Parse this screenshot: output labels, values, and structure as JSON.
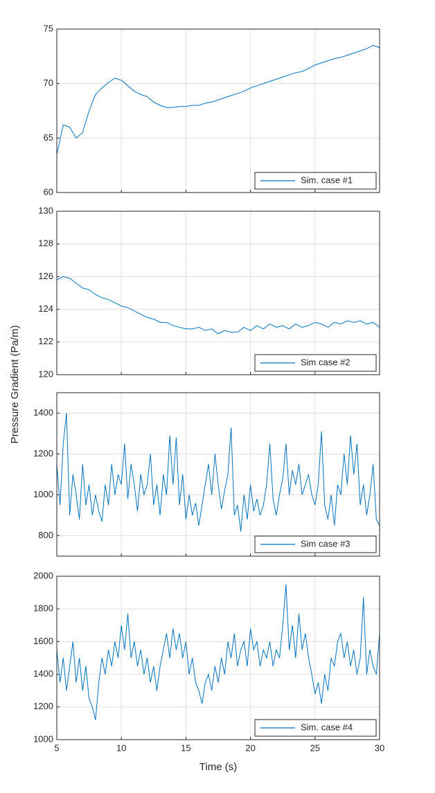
{
  "chart_data": [
    {
      "type": "line",
      "ylim": [
        60,
        75
      ],
      "yticks": [
        60,
        65,
        70,
        75
      ],
      "xlim": [
        5,
        30
      ],
      "xticks": [
        5,
        10,
        15,
        20,
        25,
        30
      ],
      "grid": true,
      "legend": "southeast",
      "x": [
        5,
        5.5,
        6,
        6.5,
        7,
        7.5,
        8,
        8.5,
        9,
        9.5,
        10,
        10.5,
        11,
        11.5,
        12,
        12.5,
        13,
        13.5,
        14,
        14.5,
        15,
        15.5,
        16,
        16.5,
        17,
        17.5,
        18,
        18.5,
        19,
        19.5,
        20,
        20.5,
        21,
        21.5,
        22,
        22.5,
        23,
        23.5,
        24,
        24.5,
        25,
        25.5,
        26,
        26.5,
        27,
        27.5,
        28,
        28.5,
        29,
        29.5,
        30
      ],
      "series": [
        {
          "name": "Sim. case #1",
          "color": "#0072bd",
          "values": [
            63.5,
            66.2,
            66.0,
            65.0,
            65.5,
            67.5,
            69.0,
            69.6,
            70.1,
            70.5,
            70.3,
            69.8,
            69.3,
            69.0,
            68.8,
            68.3,
            68.0,
            67.8,
            67.8,
            67.9,
            67.9,
            68.0,
            68.0,
            68.2,
            68.3,
            68.5,
            68.7,
            68.9,
            69.1,
            69.3,
            69.6,
            69.8,
            70.0,
            70.2,
            70.4,
            70.6,
            70.8,
            71.0,
            71.1,
            71.4,
            71.7,
            71.9,
            72.1,
            72.3,
            72.4,
            72.6,
            72.8,
            73.0,
            73.2,
            73.5,
            73.3
          ]
        }
      ]
    },
    {
      "type": "line",
      "ylim": [
        120,
        130
      ],
      "yticks": [
        120,
        122,
        124,
        126,
        128,
        130
      ],
      "xlim": [
        5,
        30
      ],
      "xticks": [
        5,
        10,
        15,
        20,
        25,
        30
      ],
      "grid": true,
      "legend": "southeast",
      "ylabel": "Pressure Gradient (Pa/m)",
      "x": [
        5,
        5.5,
        6,
        6.5,
        7,
        7.5,
        8,
        8.5,
        9,
        9.5,
        10,
        10.5,
        11,
        11.5,
        12,
        12.5,
        13,
        13.5,
        14,
        14.5,
        15,
        15.5,
        16,
        16.5,
        17,
        17.5,
        18,
        18.5,
        19,
        19.5,
        20,
        20.5,
        21,
        21.5,
        22,
        22.5,
        23,
        23.5,
        24,
        24.5,
        25,
        25.5,
        26,
        26.5,
        27,
        27.5,
        28,
        28.5,
        29,
        29.5,
        30
      ],
      "series": [
        {
          "name": "Sim case #2",
          "color": "#0072bd",
          "values": [
            125.8,
            126.0,
            125.9,
            125.6,
            125.3,
            125.2,
            124.9,
            124.7,
            124.6,
            124.4,
            124.2,
            124.1,
            123.9,
            123.7,
            123.5,
            123.4,
            123.2,
            123.2,
            123.0,
            122.9,
            122.8,
            122.8,
            122.9,
            122.7,
            122.8,
            122.5,
            122.7,
            122.6,
            122.6,
            122.9,
            122.7,
            123.0,
            122.8,
            123.1,
            122.9,
            123.0,
            122.8,
            123.1,
            122.9,
            123.0,
            123.2,
            123.1,
            122.9,
            123.2,
            123.1,
            123.3,
            123.2,
            123.3,
            123.1,
            123.2,
            122.9
          ]
        }
      ]
    },
    {
      "type": "line",
      "ylim": [
        700,
        1500
      ],
      "yticks": [
        800,
        1000,
        1200,
        1400
      ],
      "xlim": [
        5,
        30
      ],
      "xticks": [
        5,
        10,
        15,
        20,
        25,
        30
      ],
      "grid": true,
      "legend": "southeast",
      "x": [
        5,
        5.25,
        5.5,
        5.75,
        6,
        6.25,
        6.5,
        6.75,
        7,
        7.25,
        7.5,
        7.75,
        8,
        8.25,
        8.5,
        8.75,
        9,
        9.25,
        9.5,
        9.75,
        10,
        10.25,
        10.5,
        10.75,
        11,
        11.25,
        11.5,
        11.75,
        12,
        12.25,
        12.5,
        12.75,
        13,
        13.25,
        13.5,
        13.75,
        14,
        14.25,
        14.5,
        14.75,
        15,
        15.25,
        15.5,
        15.75,
        16,
        16.25,
        16.5,
        16.75,
        17,
        17.25,
        17.5,
        17.75,
        18,
        18.25,
        18.5,
        18.75,
        19,
        19.25,
        19.5,
        19.75,
        20,
        20.25,
        20.5,
        20.75,
        21,
        21.25,
        21.5,
        21.75,
        22,
        22.25,
        22.5,
        22.75,
        23,
        23.25,
        23.5,
        23.75,
        24,
        24.25,
        24.5,
        24.75,
        25,
        25.25,
        25.5,
        25.75,
        26,
        26.25,
        26.5,
        26.75,
        27,
        27.25,
        27.5,
        27.75,
        28,
        28.25,
        28.5,
        28.75,
        29,
        29.25,
        29.5,
        29.75,
        30
      ],
      "series": [
        {
          "name": "Sim case #3",
          "color": "#0072bd",
          "values": [
            1150,
            950,
            1250,
            1400,
            900,
            1100,
            1000,
            880,
            1150,
            950,
            1050,
            900,
            1000,
            920,
            870,
            1050,
            950,
            1150,
            1000,
            1100,
            1050,
            1250,
            980,
            1150,
            1050,
            920,
            1100,
            1000,
            1050,
            1200,
            950,
            1050,
            900,
            1100,
            1000,
            1290,
            1050,
            1280,
            950,
            1100,
            880,
            1000,
            900,
            960,
            850,
            950,
            1050,
            1150,
            1000,
            1200,
            1050,
            930,
            1020,
            1100,
            1330,
            900,
            950,
            820,
            1000,
            880,
            1050,
            920,
            980,
            900,
            950,
            1050,
            1250,
            980,
            900,
            1000,
            1080,
            1250,
            1000,
            1120,
            1050,
            1150,
            1000,
            1050,
            1100,
            1000,
            950,
            1050,
            1310,
            950,
            880,
            1000,
            850,
            1050,
            1000,
            1200,
            1050,
            1290,
            1100,
            1250,
            950,
            1050,
            900,
            1000,
            1150,
            880,
            850
          ]
        }
      ]
    },
    {
      "type": "line",
      "ylim": [
        1000,
        2000
      ],
      "yticks": [
        1000,
        1200,
        1400,
        1600,
        1800,
        2000
      ],
      "xlim": [
        5,
        30
      ],
      "xticks": [
        5,
        10,
        15,
        20,
        25,
        30
      ],
      "grid": true,
      "legend": "southeast",
      "xlabel": "Time (s)",
      "x": [
        5,
        5.25,
        5.5,
        5.75,
        6,
        6.25,
        6.5,
        6.75,
        7,
        7.25,
        7.5,
        7.75,
        8,
        8.25,
        8.5,
        8.75,
        9,
        9.25,
        9.5,
        9.75,
        10,
        10.25,
        10.5,
        10.75,
        11,
        11.25,
        11.5,
        11.75,
        12,
        12.25,
        12.5,
        12.75,
        13,
        13.25,
        13.5,
        13.75,
        14,
        14.25,
        14.5,
        14.75,
        15,
        15.25,
        15.5,
        15.75,
        16,
        16.25,
        16.5,
        16.75,
        17,
        17.25,
        17.5,
        17.75,
        18,
        18.25,
        18.5,
        18.75,
        19,
        19.25,
        19.5,
        19.75,
        20,
        20.25,
        20.5,
        20.75,
        21,
        21.25,
        21.5,
        21.75,
        22,
        22.25,
        22.5,
        22.75,
        23,
        23.25,
        23.5,
        23.75,
        24,
        24.25,
        24.5,
        24.75,
        25,
        25.25,
        25.5,
        25.75,
        26,
        26.25,
        26.5,
        26.75,
        27,
        27.25,
        27.5,
        27.75,
        28,
        28.25,
        28.5,
        28.75,
        29,
        29.25,
        29.5,
        29.75,
        30
      ],
      "series": [
        {
          "name": "Sim. case #4",
          "color": "#0072bd",
          "values": [
            1550,
            1350,
            1500,
            1300,
            1450,
            1600,
            1350,
            1500,
            1300,
            1450,
            1250,
            1200,
            1120,
            1350,
            1500,
            1400,
            1550,
            1450,
            1600,
            1500,
            1700,
            1550,
            1770,
            1500,
            1600,
            1450,
            1550,
            1400,
            1500,
            1350,
            1450,
            1300,
            1450,
            1550,
            1650,
            1500,
            1680,
            1550,
            1650,
            1500,
            1600,
            1400,
            1500,
            1350,
            1300,
            1220,
            1350,
            1400,
            1300,
            1450,
            1350,
            1500,
            1400,
            1600,
            1500,
            1650,
            1450,
            1550,
            1600,
            1450,
            1680,
            1550,
            1600,
            1450,
            1550,
            1500,
            1600,
            1450,
            1550,
            1500,
            1700,
            1950,
            1550,
            1700,
            1500,
            1770,
            1550,
            1650,
            1500,
            1400,
            1280,
            1350,
            1220,
            1400,
            1300,
            1500,
            1450,
            1600,
            1650,
            1500,
            1600,
            1450,
            1550,
            1400,
            1500,
            1870,
            1400,
            1550,
            1450,
            1400,
            1650
          ]
        }
      ]
    }
  ]
}
